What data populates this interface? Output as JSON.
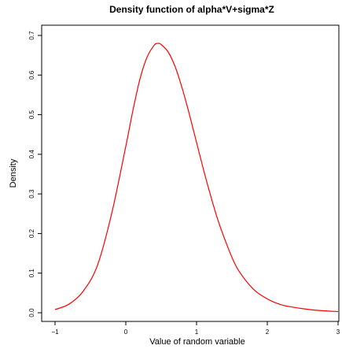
{
  "chart_data": {
    "type": "line",
    "title": "Density function of alpha*V+sigma*Z",
    "xlabel": "Value of random variable",
    "ylabel": "Density",
    "xlim": [
      -1,
      3
    ],
    "ylim": [
      0,
      0.7
    ],
    "xticks": [
      -1,
      0,
      1,
      2,
      3
    ],
    "xtick_labels": [
      "−1",
      "0",
      "1",
      "2",
      "3"
    ],
    "yticks": [
      0,
      0.1,
      0.2,
      0.3,
      0.4,
      0.5,
      0.6,
      0.7
    ],
    "ytick_labels": [
      "0.0",
      "0.1",
      "0.2",
      "0.3",
      "0.4",
      "0.5",
      "0.6",
      "0.7"
    ],
    "grid": false,
    "series": [
      {
        "color": "#ff0000",
        "x": [
          -1.0,
          -0.8,
          -0.6,
          -0.4,
          -0.2,
          0.0,
          0.1,
          0.2,
          0.3,
          0.4,
          0.45,
          0.5,
          0.6,
          0.7,
          0.8,
          0.9,
          1.0,
          1.1,
          1.2,
          1.3,
          1.4,
          1.5,
          1.6,
          1.8,
          2.0,
          2.2,
          2.4,
          2.6,
          2.8,
          3.0
        ],
        "y": [
          0.008,
          0.022,
          0.055,
          0.12,
          0.25,
          0.42,
          0.51,
          0.59,
          0.645,
          0.675,
          0.68,
          0.677,
          0.658,
          0.62,
          0.565,
          0.5,
          0.43,
          0.36,
          0.295,
          0.235,
          0.185,
          0.14,
          0.105,
          0.06,
          0.035,
          0.02,
          0.013,
          0.008,
          0.005,
          0.003
        ]
      }
    ]
  }
}
